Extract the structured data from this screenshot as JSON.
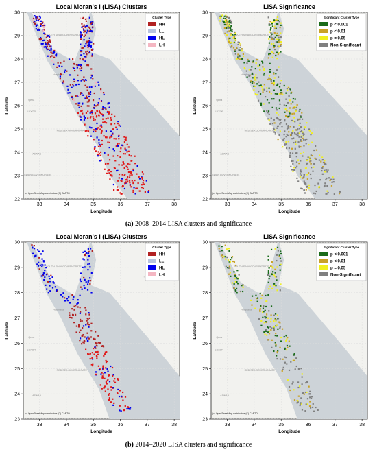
{
  "figure": {
    "row_a": {
      "caption_label": "(a)",
      "caption_text": "2008–2014 LISA clusters and significance",
      "left": {
        "title": "Local Moran's I (LISA) Clusters",
        "legend_title": "Cluster Type",
        "legend": [
          {
            "label": "HH",
            "color": "#b22222"
          },
          {
            "label": "LL",
            "color": "#b8c4e0"
          },
          {
            "label": "HL",
            "color": "#0000ee"
          },
          {
            "label": "LH",
            "color": "#f4b6c2"
          }
        ],
        "ylabel": "Latitude",
        "xlabel": "Longitude",
        "xticks": [
          "33",
          "34",
          "35",
          "36",
          "37",
          "38"
        ],
        "yticks": [
          "22",
          "23",
          "24",
          "25",
          "26",
          "27",
          "28",
          "29",
          "30"
        ],
        "credit": "(c) OpenStreetMap contributors (C) CARTO",
        "map_labels": [
          "SOUTH SINAI GOVERNORATE",
          "RED SEA GOVERNORATE",
          "TABUK",
          "ASWAN GOVERNORATE",
          "ASWAN",
          "LUXOR",
          "Qena",
          "Hurghada"
        ]
      },
      "right": {
        "title": "LISA Significance",
        "legend_title": "Significant Cluster Type",
        "legend": [
          {
            "label": "p < 0.001",
            "color": "#1a6b1a"
          },
          {
            "label": "p < 0.01",
            "color": "#c9a227"
          },
          {
            "label": "p = 0.05",
            "color": "#f0f020"
          },
          {
            "label": "Non-Significant",
            "color": "#808080"
          }
        ],
        "ylabel": "Latitude",
        "xlabel": "Longitude",
        "xticks": [
          "33",
          "34",
          "35",
          "36",
          "37",
          "38"
        ],
        "yticks": [
          "22",
          "23",
          "24",
          "25",
          "26",
          "27",
          "28",
          "29",
          "30"
        ],
        "credit": "(c) OpenStreetMap contributors (C) CARTO",
        "map_labels": [
          "SOUTH SINAI GOVERNORATE",
          "RED SEA GOVERNORATE",
          "TABUK",
          "ASWAN GOVERNORATE",
          "ASWAN",
          "LUXOR",
          "Qena",
          "Hurghada"
        ]
      }
    },
    "row_b": {
      "caption_label": "(b)",
      "caption_text": "2014–2020 LISA clusters and significance",
      "left": {
        "title": "Local Moran's I (LISA) Clusters",
        "legend_title": "Cluster Type",
        "legend": [
          {
            "label": "HH",
            "color": "#b22222"
          },
          {
            "label": "LL",
            "color": "#b8c4e0"
          },
          {
            "label": "HL",
            "color": "#0000ee"
          },
          {
            "label": "LH",
            "color": "#f4b6c2"
          }
        ],
        "ylabel": "Latitude",
        "xlabel": "Longitude",
        "xticks": [
          "33",
          "34",
          "35",
          "36",
          "37",
          "38"
        ],
        "yticks": [
          "23",
          "24",
          "25",
          "26",
          "27",
          "28",
          "29",
          "30"
        ],
        "credit": "(c) OpenStreetMap contributors (C) CARTO",
        "map_labels": [
          "SOUTH SINAI GOVERNORATE",
          "RED SEA GOVERNORATE",
          "TABUK",
          "ASWAN",
          "LUXOR",
          "Qena",
          "Hurghada"
        ]
      },
      "right": {
        "title": "LISA Significance",
        "legend_title": "Significant Cluster Type",
        "legend": [
          {
            "label": "p < 0.001",
            "color": "#1a6b1a"
          },
          {
            "label": "p < 0.01",
            "color": "#c9a227"
          },
          {
            "label": "p = 0.05",
            "color": "#f0f020"
          },
          {
            "label": "Non-Significant",
            "color": "#808080"
          }
        ],
        "ylabel": "Latitude",
        "xlabel": "Longitude",
        "xticks": [
          "33",
          "34",
          "35",
          "36",
          "37",
          "38"
        ],
        "yticks": [
          "23",
          "24",
          "25",
          "26",
          "27",
          "28",
          "29",
          "30"
        ],
        "credit": "(c) OpenStreetMap contributors (C) CARTO",
        "map_labels": [
          "SOUTH SINAI GOVERNORATE",
          "RED SEA GOVERNORATE",
          "TABUK",
          "ASWAN",
          "LUXOR",
          "Qena",
          "Hurghada"
        ]
      }
    }
  }
}
